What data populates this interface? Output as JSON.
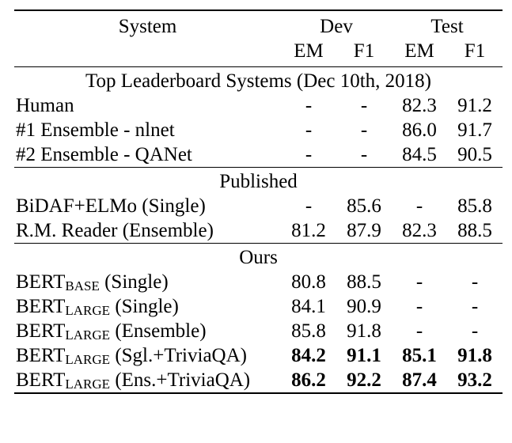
{
  "header": {
    "system": "System",
    "dev": "Dev",
    "test": "Test",
    "em": "EM",
    "f1": "F1"
  },
  "sections": [
    {
      "title": "Top Leaderboard Systems (Dec 10th, 2018)",
      "rows": [
        {
          "name": "Human",
          "sub": "",
          "suffix": "",
          "dev_em": "-",
          "dev_f1": "-",
          "test_em": "82.3",
          "test_f1": "91.2",
          "bold": false
        },
        {
          "name": "#1 Ensemble - nlnet",
          "sub": "",
          "suffix": "",
          "dev_em": "-",
          "dev_f1": "-",
          "test_em": "86.0",
          "test_f1": "91.7",
          "bold": false
        },
        {
          "name": "#2 Ensemble - QANet",
          "sub": "",
          "suffix": "",
          "dev_em": "-",
          "dev_f1": "-",
          "test_em": "84.5",
          "test_f1": "90.5",
          "bold": false
        }
      ]
    },
    {
      "title": "Published",
      "rows": [
        {
          "name": "BiDAF+ELMo (Single)",
          "sub": "",
          "suffix": "",
          "dev_em": "-",
          "dev_f1": "85.6",
          "test_em": "-",
          "test_f1": "85.8",
          "bold": false
        },
        {
          "name": "R.M. Reader (Ensemble)",
          "sub": "",
          "suffix": "",
          "dev_em": "81.2",
          "dev_f1": "87.9",
          "test_em": "82.3",
          "test_f1": "88.5",
          "bold": false
        }
      ]
    },
    {
      "title": "Ours",
      "rows": [
        {
          "name": "BERT",
          "sub": "BASE",
          "suffix": " (Single)",
          "dev_em": "80.8",
          "dev_f1": "88.5",
          "test_em": "-",
          "test_f1": "-",
          "bold": false
        },
        {
          "name": "BERT",
          "sub": "LARGE",
          "suffix": " (Single)",
          "dev_em": "84.1",
          "dev_f1": "90.9",
          "test_em": "-",
          "test_f1": "-",
          "bold": false
        },
        {
          "name": "BERT",
          "sub": "LARGE",
          "suffix": " (Ensemble)",
          "dev_em": "85.8",
          "dev_f1": "91.8",
          "test_em": "-",
          "test_f1": "-",
          "bold": false
        },
        {
          "name": "BERT",
          "sub": "LARGE",
          "suffix": " (Sgl.+TriviaQA)",
          "dev_em": "84.2",
          "dev_f1": "91.1",
          "test_em": "85.1",
          "test_f1": "91.8",
          "bold": true
        },
        {
          "name": "BERT",
          "sub": "LARGE",
          "suffix": " (Ens.+TriviaQA)",
          "dev_em": "86.2",
          "dev_f1": "92.2",
          "test_em": "87.4",
          "test_f1": "93.2",
          "bold": true
        }
      ]
    }
  ]
}
